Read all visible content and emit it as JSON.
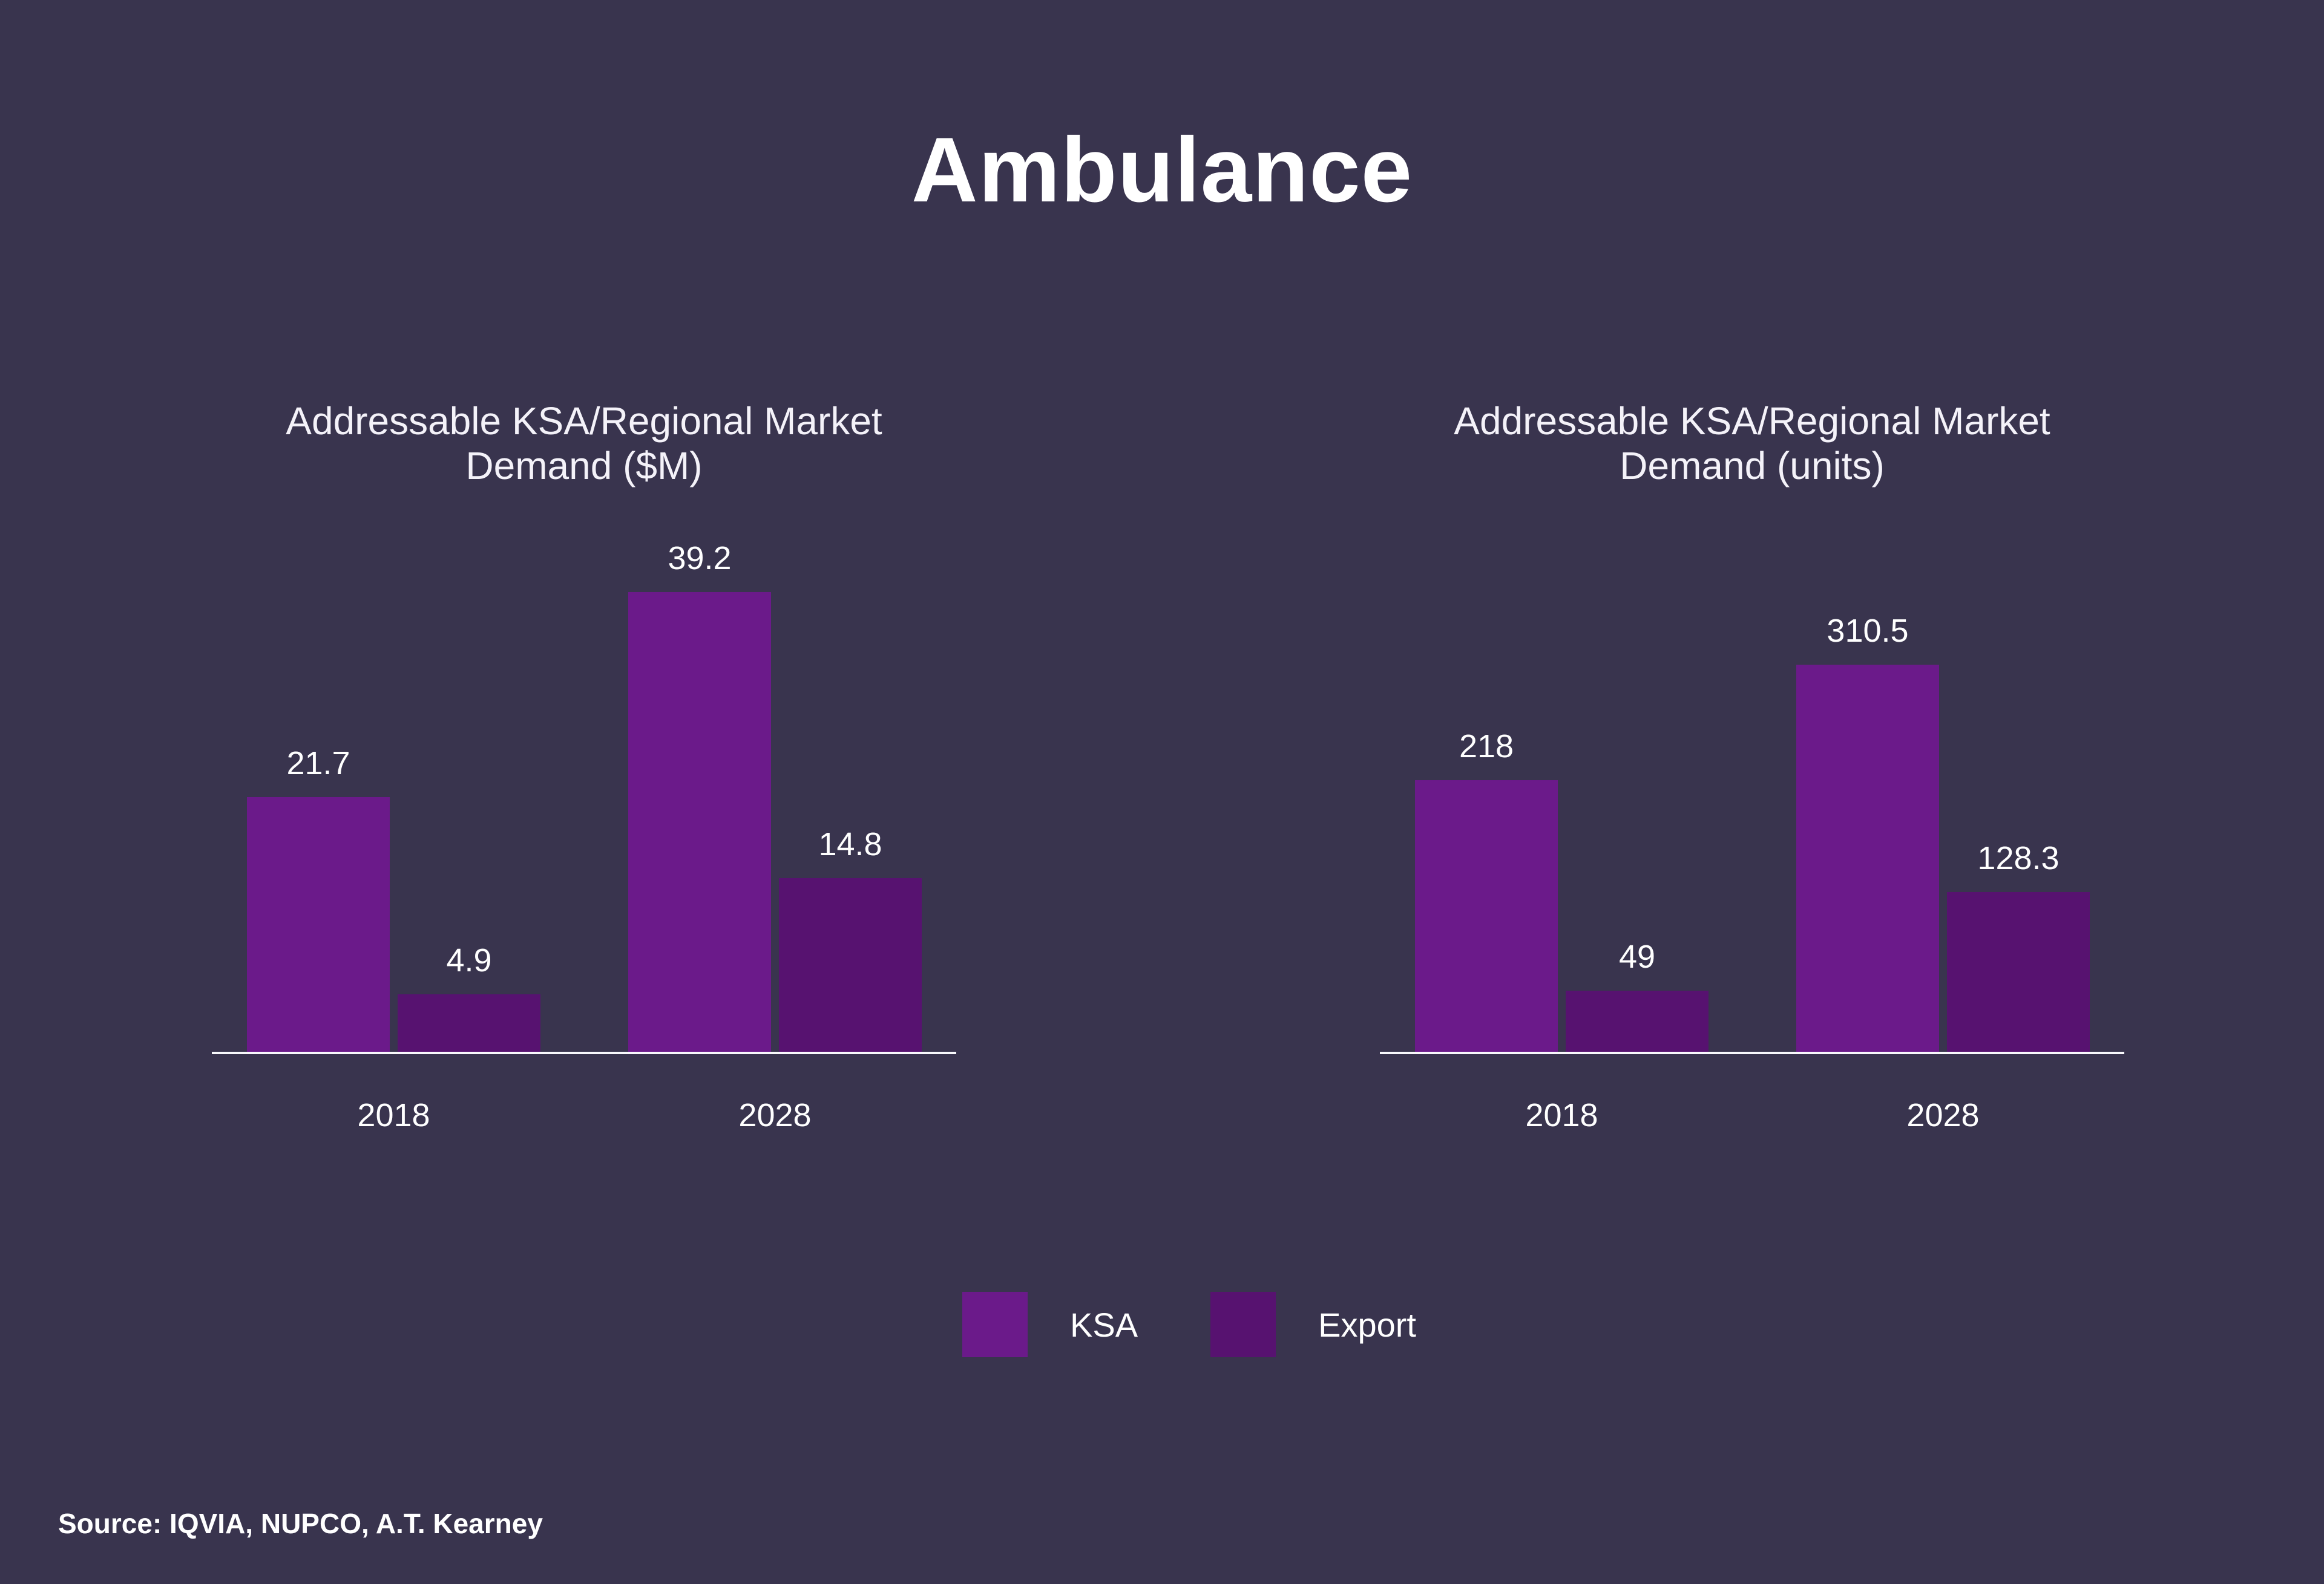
{
  "page": {
    "title": "Ambulance",
    "source": "Source: IQVIA, NUPCO, A.T. Kearney"
  },
  "colors": {
    "background": "#39344e",
    "ksa": "#6b1a8a",
    "export": "#571270",
    "axis": "#f8f8fc",
    "text": "#ffffff"
  },
  "legend": {
    "position": "bottom-center",
    "items": [
      {
        "label": "KSA",
        "color": "#6b1a8a"
      },
      {
        "label": "Export",
        "color": "#571270"
      }
    ]
  },
  "chart_data": [
    {
      "type": "bar",
      "title": "Addressable KSA/Regional Market Demand ($M)",
      "categories": [
        "2018",
        "2028"
      ],
      "series": [
        {
          "name": "KSA",
          "color": "#6b1a8a",
          "values": [
            21.7,
            39.2
          ]
        },
        {
          "name": "Export",
          "color": "#571270",
          "values": [
            4.9,
            14.8
          ]
        }
      ],
      "ylim": [
        0,
        39.2
      ],
      "grid": false,
      "value_labels": true,
      "xlabel": "",
      "ylabel": ""
    },
    {
      "type": "bar",
      "title": "Addressable KSA/Regional Market Demand (units)",
      "categories": [
        "2018",
        "2028"
      ],
      "series": [
        {
          "name": "KSA",
          "color": "#6b1a8a",
          "values": [
            218,
            310.5
          ]
        },
        {
          "name": "Export",
          "color": "#571270",
          "values": [
            49,
            128.3
          ]
        }
      ],
      "ylim": [
        0,
        310.5
      ],
      "grid": false,
      "value_labels": true,
      "xlabel": "",
      "ylabel": ""
    }
  ]
}
